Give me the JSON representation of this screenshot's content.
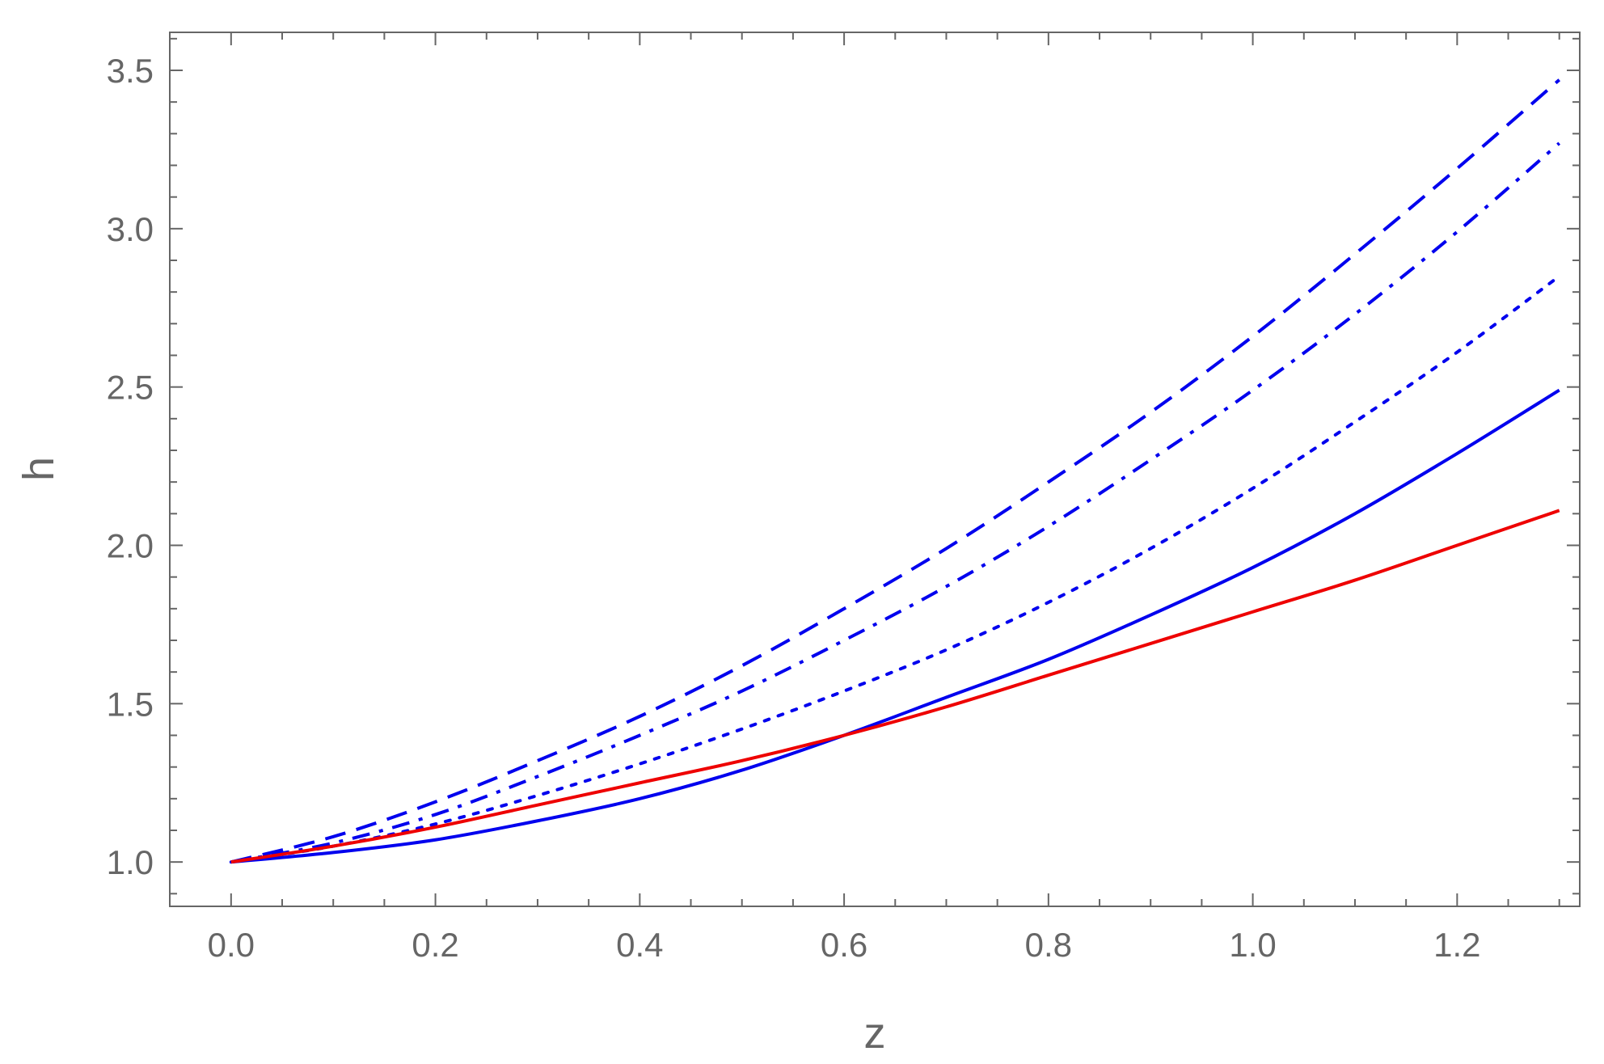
{
  "chart_data": {
    "type": "line",
    "xlabel": "z",
    "ylabel": "h",
    "xlim": [
      -0.06,
      1.32
    ],
    "ylim": [
      0.86,
      3.62
    ],
    "x_ticks": [
      "0.0",
      "0.2",
      "0.4",
      "0.6",
      "0.8",
      "1.0",
      "1.2"
    ],
    "y_ticks": [
      "1.0",
      "1.5",
      "2.0",
      "2.5",
      "3.0",
      "3.5"
    ],
    "grid": false,
    "legend": "none",
    "x": [
      0.0,
      0.1,
      0.2,
      0.3,
      0.4,
      0.5,
      0.6,
      0.7,
      0.8,
      0.9,
      1.0,
      1.1,
      1.2,
      1.3
    ],
    "series": [
      {
        "style": "dashed",
        "color": "#0000ee",
        "values": [
          1.0,
          1.08,
          1.19,
          1.32,
          1.46,
          1.62,
          1.8,
          1.99,
          2.2,
          2.42,
          2.66,
          2.92,
          3.19,
          3.47
        ]
      },
      {
        "style": "dash-dot",
        "color": "#0000ee",
        "values": [
          1.0,
          1.06,
          1.15,
          1.27,
          1.4,
          1.54,
          1.7,
          1.87,
          2.06,
          2.27,
          2.49,
          2.73,
          2.99,
          3.27
        ]
      },
      {
        "style": "dotted",
        "color": "#0000ee",
        "values": [
          1.0,
          1.05,
          1.12,
          1.21,
          1.31,
          1.42,
          1.54,
          1.67,
          1.82,
          1.99,
          2.18,
          2.39,
          2.61,
          2.85
        ]
      },
      {
        "style": "solid",
        "color": "#0000ee",
        "values": [
          1.0,
          1.03,
          1.07,
          1.13,
          1.2,
          1.29,
          1.4,
          1.52,
          1.64,
          1.78,
          1.93,
          2.1,
          2.29,
          2.49
        ]
      },
      {
        "style": "solid",
        "color": "#ee0000",
        "values": [
          1.0,
          1.05,
          1.11,
          1.18,
          1.25,
          1.32,
          1.4,
          1.49,
          1.59,
          1.69,
          1.79,
          1.89,
          2.0,
          2.11
        ]
      }
    ]
  }
}
